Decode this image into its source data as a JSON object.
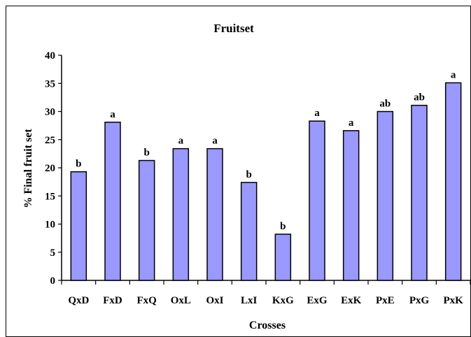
{
  "chart_data": {
    "type": "bar",
    "title": "Fruitset",
    "xlabel": "Crosses",
    "ylabel": "% Final fruit set",
    "ylim": [
      0,
      40
    ],
    "yticks": [
      0,
      5,
      10,
      15,
      20,
      25,
      30,
      35,
      40
    ],
    "grid": false,
    "legend": "none",
    "categories": [
      "QxD",
      "FxD",
      "FxQ",
      "OxL",
      "OxI",
      "LxI",
      "KxG",
      "ExG",
      "ExK",
      "PxE",
      "PxG",
      "PxK"
    ],
    "values": [
      19.3,
      28.1,
      21.3,
      23.4,
      23.4,
      17.4,
      8.2,
      28.3,
      26.6,
      30.0,
      31.1,
      35.1
    ],
    "annotations": [
      "b",
      "a",
      "b",
      "a",
      "a",
      "b",
      "b",
      "a",
      "a",
      "ab",
      "ab",
      "a"
    ],
    "bar_color": "#9999ff",
    "bar_outline": "#000000"
  }
}
